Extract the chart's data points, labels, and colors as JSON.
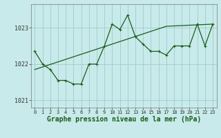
{
  "title": "Graphe pression niveau de la mer (hPa)",
  "bg_color": "#c8eaea",
  "grid_color": "#a0cccc",
  "line_color": "#1a5c1a",
  "x_labels": [
    "0",
    "1",
    "2",
    "3",
    "4",
    "5",
    "6",
    "7",
    "8",
    "9",
    "10",
    "11",
    "12",
    "13",
    "14",
    "15",
    "16",
    "17",
    "18",
    "19",
    "20",
    "21",
    "22",
    "23"
  ],
  "x_values": [
    0,
    1,
    2,
    3,
    4,
    5,
    6,
    7,
    8,
    9,
    10,
    11,
    12,
    13,
    14,
    15,
    16,
    17,
    18,
    19,
    20,
    21,
    22,
    23
  ],
  "y_main": [
    1022.35,
    1022.0,
    1021.85,
    1021.55,
    1021.55,
    1021.45,
    1021.45,
    1022.0,
    1022.0,
    1022.5,
    1023.1,
    1022.95,
    1023.35,
    1022.75,
    1022.55,
    1022.35,
    1022.35,
    1022.25,
    1022.5,
    1022.5,
    1022.5,
    1023.1,
    1022.5,
    1023.1
  ],
  "y_trend": [
    1021.85,
    1021.92,
    1021.99,
    1022.06,
    1022.13,
    1022.2,
    1022.27,
    1022.34,
    1022.41,
    1022.48,
    1022.55,
    1022.62,
    1022.69,
    1022.76,
    1022.83,
    1022.9,
    1022.97,
    1023.04,
    1023.05,
    1023.06,
    1023.07,
    1023.08,
    1023.09,
    1023.1
  ],
  "ylim": [
    1020.8,
    1023.65
  ],
  "yticks": [
    1021,
    1022,
    1023
  ],
  "ylabel_fontsize": 6,
  "xlabel_fontsize": 5,
  "title_fontsize": 7
}
